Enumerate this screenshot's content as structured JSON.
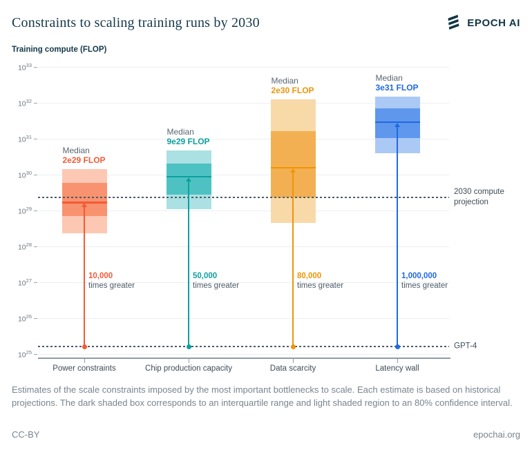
{
  "header": {
    "title": "Constraints to scaling training runs by 2030",
    "brand": "EPOCH AI",
    "brand_color": "#0f3544"
  },
  "chart_data": {
    "type": "box",
    "title": "Constraints to scaling training runs by 2030",
    "ylabel": "Training compute (FLOP)",
    "y_scale": "log10",
    "y_min_exp": 25,
    "y_max_exp": 33,
    "grid": true,
    "median_prefix": "Median",
    "multiplier_suffix": "times greater",
    "categories": [
      "Power constraints",
      "Chip production capacity",
      "Data scarcity",
      "Latency wall"
    ],
    "series": [
      {
        "name": "Power constraints",
        "p10": 2.3e+28,
        "p25": 7e+28,
        "median": 1.7e+29,
        "p75": 6e+29,
        "p90": 1.4e+30,
        "median_label": "2e29 FLOP",
        "multiplier": "10,000",
        "color_accent": "#f25b35",
        "color_dark": "#f9926f",
        "color_light": "#fcc8b4"
      },
      {
        "name": "Chip production capacity",
        "p10": 1.1e+29,
        "p25": 2.8e+29,
        "median": 8.8e+29,
        "p75": 2e+30,
        "p90": 4.7e+30,
        "median_label": "9e29 FLOP",
        "multiplier": "50,000",
        "color_accent": "#0d9f9f",
        "color_dark": "#4ec2c2",
        "color_light": "#abe1e2"
      },
      {
        "name": "Data scarcity",
        "p10": 4.5e+28,
        "p25": 2.3e+29,
        "median": 1.56e+30,
        "p75": 1.6e+31,
        "p90": 1.25e+32,
        "median_label": "2e30 FLOP",
        "multiplier": "80,000",
        "color_accent": "#f09409",
        "color_dark": "#f3b052",
        "color_light": "#f8d9a8"
      },
      {
        "name": "Latency wall",
        "p10": 4e+30,
        "p25": 1.05e+31,
        "median": 2.9e+31,
        "p75": 7e+31,
        "p90": 1.5e+32,
        "median_label": "3e31 FLOP",
        "multiplier": "1,000,000",
        "color_accent": "#2069e2",
        "color_dark": "#5e97ec",
        "color_light": "#abc9f5"
      }
    ],
    "reference_lines": [
      {
        "label": "2030 compute projection",
        "value": 2.3e+29,
        "color": "#4c5b66"
      },
      {
        "label": "GPT-4",
        "value": 1.6e+25,
        "color": "#4c5b66"
      }
    ],
    "legend_note": "dark box = interquartile range, light region = 80% confidence interval"
  },
  "caption": "Estimates of the scale constraints imposed by the most important bottlenecks to scale. Each estimate is based on historical projections. The dark shaded box corresponds to an interquartile range and light shaded region to an 80% confidence interval.",
  "footer": {
    "license": "CC-BY",
    "site": "epochai.org"
  }
}
